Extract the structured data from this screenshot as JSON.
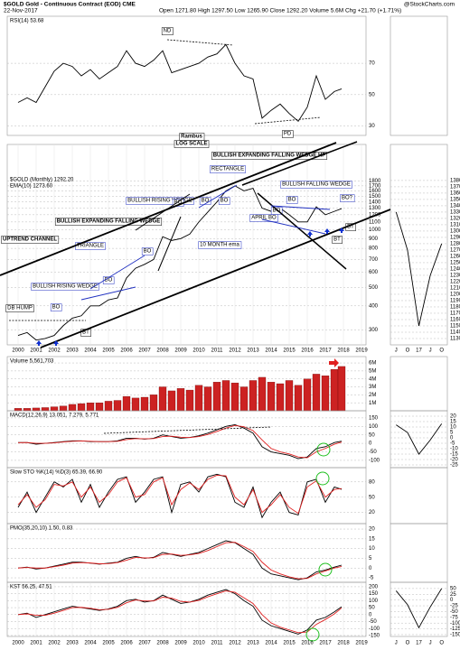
{
  "header": {
    "title": "$GOLD Gold - Continuous Contract (EOD) CME",
    "date": "22-Nov-2017",
    "quote": "Open 1271.80  High 1297.50  Low 1265.90  Close 1292.20  Volume 5.6M  Chg +21.70 (+1.71%)",
    "credit": "@StockCharts.com"
  },
  "chart_data": [
    {
      "type": "line",
      "label": "RSI(14) 53.68",
      "x": [
        2000,
        2000.5,
        2001,
        2001.5,
        2002,
        2002.5,
        2003,
        2003.5,
        2004,
        2004.5,
        2005,
        2005.5,
        2006,
        2006.5,
        2007,
        2007.5,
        2008,
        2008.5,
        2009,
        2009.5,
        2010,
        2010.5,
        2011,
        2011.5,
        2012,
        2012.5,
        2013,
        2013.5,
        2014,
        2014.5,
        2015,
        2015.5,
        2016,
        2016.5,
        2017,
        2017.5,
        2017.9
      ],
      "xlim": [
        1999.4,
        2019.25
      ],
      "series": [
        {
          "color": "#000000",
          "values": [
            45,
            48,
            45,
            55,
            65,
            70,
            68,
            62,
            66,
            60,
            64,
            68,
            78,
            70,
            68,
            72,
            78,
            64,
            66,
            68,
            70,
            74,
            76,
            82,
            70,
            62,
            60,
            35,
            40,
            44,
            38,
            33,
            42,
            62,
            47,
            52,
            53.68
          ]
        }
      ],
      "ylim": [
        24,
        100
      ],
      "yticks": [
        70,
        50,
        30
      ],
      "grid": true,
      "annotations": [
        "ND",
        "PD"
      ]
    },
    {
      "type": "line",
      "label": "$GOLD (Monthly) 1292.20",
      "sublabel": "EMA(10) 1273.60",
      "log": true,
      "x": [
        2000,
        2000.5,
        2001,
        2001.5,
        2002,
        2002.5,
        2003,
        2003.5,
        2004,
        2004.5,
        2005,
        2005.5,
        2006,
        2006.5,
        2007,
        2007.5,
        2008,
        2008.5,
        2009,
        2009.5,
        2010,
        2010.5,
        2011,
        2011.5,
        2012,
        2012.5,
        2013,
        2013.5,
        2014,
        2014.5,
        2015,
        2015.5,
        2016,
        2016.5,
        2017,
        2017.5,
        2017.9
      ],
      "xlim": [
        1999.4,
        2019.25
      ],
      "xticks": [
        2000,
        2001,
        2002,
        2003,
        2004,
        2005,
        2006,
        2007,
        2008,
        2009,
        2010,
        2011,
        2012,
        2013,
        2014,
        2015,
        2016,
        2017,
        2018,
        2019
      ],
      "series": [
        {
          "color": "#000000",
          "values": [
            280,
            290,
            265,
            270,
            280,
            315,
            345,
            355,
            400,
            400,
            430,
            440,
            560,
            630,
            660,
            700,
            920,
            880,
            900,
            950,
            1100,
            1240,
            1400,
            1600,
            1700,
            1600,
            1650,
            1300,
            1250,
            1300,
            1200,
            1100,
            1100,
            1320,
            1200,
            1250,
            1292.2
          ]
        }
      ],
      "ylim": [
        250,
        2800
      ],
      "yticks": [
        1800,
        1700,
        1600,
        1500,
        1400,
        1300,
        1200,
        1100,
        1000,
        900,
        800,
        700,
        600,
        500,
        400,
        300
      ],
      "grid": true,
      "annotations": [
        "Rambus",
        "LOG SCALE",
        "BULLISH EXPANDING FALLING WEDGE HP",
        "RECTANGLE",
        "BULLISH FALLING WEDGE",
        "BULLISH RISING WEDGE",
        "BULLISH EXPANDING FALLING WEDGE",
        "UPTREND CHANNEL",
        "TRIANGLE",
        "BULLISH RISING WEDGE",
        "DB HUMP",
        "BO",
        "BO",
        "BO",
        "BO",
        "BO",
        "BO",
        "BO",
        "BO",
        "BO?",
        "BT",
        "BT",
        "BT",
        "APRIL BO",
        "10 MONTH ema"
      ]
    },
    {
      "type": "bar",
      "label": "Volume 5,561,703",
      "color": "#cc2222",
      "x": [
        2000,
        2000.5,
        2001,
        2001.5,
        2002,
        2002.5,
        2003,
        2003.5,
        2004,
        2004.5,
        2005,
        2005.5,
        2006,
        2006.5,
        2007,
        2007.5,
        2008,
        2008.5,
        2009,
        2009.5,
        2010,
        2010.5,
        2011,
        2011.5,
        2012,
        2012.5,
        2013,
        2013.5,
        2014,
        2014.5,
        2015,
        2015.5,
        2016,
        2016.5,
        2017,
        2017.5,
        2017.9
      ],
      "xlim": [
        1999.4,
        2019.25
      ],
      "values": [
        300000,
        300000,
        350000,
        400000,
        500000,
        600000,
        800000,
        900000,
        1000000,
        1000000,
        1200000,
        1300000,
        1800000,
        1600000,
        1700000,
        2000000,
        3000000,
        2500000,
        2800000,
        2600000,
        3200000,
        3000000,
        3600000,
        3800000,
        3500000,
        3000000,
        3800000,
        4200000,
        3600000,
        3400000,
        3800000,
        3200000,
        4000000,
        4600000,
        4400000,
        5200000,
        5561703
      ],
      "ylim": [
        0,
        6800000
      ],
      "yticks": [
        {
          "value": 6000000,
          "label": "6M"
        },
        {
          "value": 5000000,
          "label": "5M"
        },
        {
          "value": 4000000,
          "label": "4M"
        },
        {
          "value": 3000000,
          "label": "3M"
        },
        {
          "value": 2000000,
          "label": "2M"
        },
        {
          "value": 1000000,
          "label": "1M"
        }
      ],
      "grid": true
    },
    {
      "type": "line",
      "label": "MACD(12,26,9) 13.051, 7.279, 5.771",
      "x": [
        2000,
        2000.5,
        2001,
        2001.5,
        2002,
        2002.5,
        2003,
        2003.5,
        2004,
        2004.5,
        2005,
        2005.5,
        2006,
        2006.5,
        2007,
        2007.5,
        2008,
        2008.5,
        2009,
        2009.5,
        2010,
        2010.5,
        2011,
        2011.5,
        2012,
        2012.5,
        2013,
        2013.5,
        2014,
        2014.5,
        2015,
        2015.5,
        2016,
        2016.5,
        2017,
        2017.5,
        2017.9
      ],
      "xlim": [
        1999.4,
        2019.25
      ],
      "series": [
        {
          "color": "#000000",
          "values": [
            5,
            5,
            -5,
            0,
            5,
            10,
            15,
            15,
            10,
            10,
            10,
            15,
            30,
            30,
            25,
            30,
            50,
            40,
            30,
            35,
            45,
            60,
            80,
            100,
            110,
            90,
            60,
            -20,
            -50,
            -60,
            -70,
            -90,
            -80,
            -30,
            -20,
            5,
            13.051
          ]
        },
        {
          "color": "#e02020",
          "values": [
            4,
            5,
            0,
            0,
            3,
            8,
            12,
            14,
            12,
            10,
            10,
            12,
            22,
            28,
            27,
            28,
            40,
            42,
            36,
            34,
            40,
            52,
            70,
            90,
            105,
            98,
            75,
            20,
            -30,
            -50,
            -62,
            -80,
            -85,
            -50,
            -30,
            -5,
            7.279
          ]
        }
      ],
      "ylim": [
        -143,
        192
      ],
      "yticks": [
        150,
        100,
        50,
        0,
        -50,
        -100
      ],
      "grid": true
    },
    {
      "type": "line",
      "label": "Slow STO %K(14) %D(3) 65.39, 66.90",
      "x": [
        2000,
        2000.5,
        2001,
        2001.5,
        2002,
        2002.5,
        2003,
        2003.5,
        2004,
        2004.5,
        2005,
        2005.5,
        2006,
        2006.5,
        2007,
        2007.5,
        2008,
        2008.5,
        2009,
        2009.5,
        2010,
        2010.5,
        2011,
        2011.5,
        2012,
        2012.5,
        2013,
        2013.5,
        2014,
        2014.5,
        2015,
        2015.5,
        2016,
        2016.5,
        2017,
        2017.5,
        2017.9
      ],
      "xlim": [
        1999.4,
        2019.25
      ],
      "series": [
        {
          "color": "#000000",
          "values": [
            30,
            60,
            20,
            50,
            80,
            70,
            85,
            40,
            75,
            30,
            60,
            85,
            90,
            40,
            60,
            85,
            90,
            20,
            75,
            80,
            60,
            90,
            95,
            90,
            40,
            30,
            70,
            10,
            40,
            60,
            20,
            15,
            80,
            85,
            40,
            70,
            65.39
          ]
        },
        {
          "color": "#e02020",
          "values": [
            35,
            55,
            30,
            45,
            75,
            72,
            80,
            50,
            70,
            40,
            55,
            80,
            88,
            50,
            55,
            80,
            88,
            35,
            65,
            78,
            65,
            85,
            93,
            92,
            50,
            35,
            65,
            20,
            35,
            55,
            30,
            18,
            70,
            82,
            50,
            65,
            66.9
          ]
        }
      ],
      "ylim": [
        -2,
        108
      ],
      "yticks": [
        80,
        50,
        20
      ],
      "grid": true
    },
    {
      "type": "line",
      "label": "PMO(35,20,10) 1.50, 0.83",
      "x": [
        2000,
        2000.5,
        2001,
        2001.5,
        2002,
        2002.5,
        2003,
        2003.5,
        2004,
        2004.5,
        2005,
        2005.5,
        2006,
        2006.5,
        2007,
        2007.5,
        2008,
        2008.5,
        2009,
        2009.5,
        2010,
        2010.5,
        2011,
        2011.5,
        2012,
        2012.5,
        2013,
        2013.5,
        2014,
        2014.5,
        2015,
        2015.5,
        2016,
        2016.5,
        2017,
        2017.5,
        2017.9
      ],
      "xlim": [
        1999.4,
        2019.25
      ],
      "series": [
        {
          "color": "#000000",
          "values": [
            0,
            0.5,
            -0.5,
            0,
            1,
            2,
            3,
            3,
            2.5,
            2,
            2.5,
            3,
            5,
            6,
            5,
            5.5,
            8,
            7,
            6,
            7,
            8,
            10,
            12,
            14,
            13,
            10,
            7,
            0,
            -3,
            -4,
            -5,
            -6,
            -5,
            -2,
            -1,
            0.5,
            1.5
          ]
        },
        {
          "color": "#e02020",
          "values": [
            0,
            0.3,
            0,
            0,
            0.7,
            1.5,
            2.5,
            2.8,
            2.6,
            2.2,
            2.3,
            2.8,
            4,
            5.5,
            5.2,
            5.3,
            7,
            7.2,
            6.5,
            6.8,
            7.5,
            9,
            11,
            13,
            13.2,
            11,
            8.5,
            3,
            -1,
            -3,
            -4.5,
            -5.5,
            -5.3,
            -3,
            -1.5,
            0,
            0.83
          ]
        }
      ],
      "ylim": [
        -7.3,
        22.8
      ],
      "yticks": [
        20,
        15,
        10,
        5,
        0,
        -5
      ],
      "grid": true
    },
    {
      "type": "line",
      "label": "KST 56.25, 47.51",
      "x": [
        2000,
        2000.5,
        2001,
        2001.5,
        2002,
        2002.5,
        2003,
        2003.5,
        2004,
        2004.5,
        2005,
        2005.5,
        2006,
        2006.5,
        2007,
        2007.5,
        2008,
        2008.5,
        2009,
        2009.5,
        2010,
        2010.5,
        2011,
        2011.5,
        2012,
        2012.5,
        2013,
        2013.5,
        2014,
        2014.5,
        2015,
        2015.5,
        2016,
        2016.5,
        2017,
        2017.5,
        2017.9
      ],
      "xlim": [
        1999.4,
        2019.25
      ],
      "xticks": [
        2000,
        2001,
        2002,
        2003,
        2004,
        2005,
        2006,
        2007,
        2008,
        2009,
        2010,
        2011,
        2012,
        2013,
        2014,
        2015,
        2016,
        2017,
        2018,
        2019
      ],
      "series": [
        {
          "color": "#000000",
          "values": [
            0,
            10,
            -20,
            0,
            20,
            40,
            60,
            50,
            40,
            30,
            40,
            60,
            100,
            110,
            90,
            100,
            140,
            110,
            80,
            90,
            110,
            140,
            160,
            180,
            150,
            100,
            60,
            -40,
            -80,
            -100,
            -120,
            -140,
            -110,
            -40,
            -20,
            20,
            56.25
          ]
        },
        {
          "color": "#e02020",
          "values": [
            0,
            5,
            -5,
            -5,
            10,
            30,
            50,
            52,
            45,
            35,
            38,
            52,
            85,
            105,
            98,
            98,
            125,
            118,
            95,
            90,
            102,
            128,
            150,
            170,
            160,
            120,
            80,
            0,
            -60,
            -90,
            -110,
            -130,
            -125,
            -70,
            -35,
            5,
            47.51
          ]
        }
      ],
      "ylim": [
        -157,
        232
      ],
      "yticks": [
        200,
        150,
        100,
        50,
        0,
        -50,
        -100,
        -150
      ],
      "grid": true
    },
    {
      "type": "line",
      "categories": [
        "J",
        "O",
        "17",
        "J",
        "O"
      ],
      "series": [
        {
          "color": "#000000",
          "values": [
            1330,
            1270,
            1150,
            1230,
            1280
          ]
        }
      ],
      "ylim": [
        1120,
        1437
      ],
      "yticks": [
        1380,
        1370,
        1360,
        1350,
        1340,
        1330,
        1320,
        1310,
        1300,
        1290,
        1280,
        1270,
        1260,
        1250,
        1240,
        1230,
        1220,
        1210,
        1200,
        1190,
        1180,
        1170,
        1160,
        1150,
        1140,
        1130
      ],
      "grid": true
    },
    {
      "type": "line",
      "series": [
        {
          "color": "#000000",
          "values": [
            12,
            5,
            -15,
            -2,
            13
          ]
        }
      ],
      "ylim": [
        -27.5,
        25
      ],
      "yticks": [
        20,
        15,
        10,
        5,
        0,
        -5,
        -10,
        -15,
        -20,
        -25
      ],
      "grid": true
    },
    {
      "type": "line",
      "categories": [
        "J",
        "O",
        "17",
        "J",
        "O"
      ],
      "series": [
        {
          "color": "#000000",
          "values": [
            40,
            -20,
            -120,
            -30,
            50
          ]
        }
      ],
      "ylim": [
        -158,
        77
      ],
      "yticks": [
        50,
        25,
        0,
        -25,
        -50,
        -75,
        -100,
        -125,
        -150
      ],
      "grid": true
    }
  ]
}
